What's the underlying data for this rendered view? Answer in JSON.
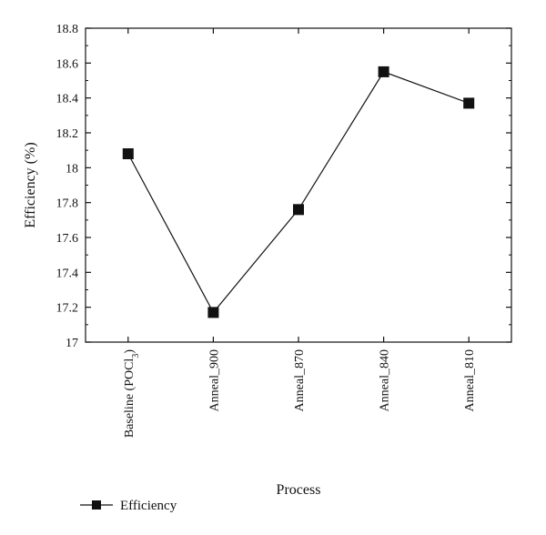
{
  "chart_data": {
    "type": "line",
    "xlabel": "Process",
    "ylabel": "Efficiency (%)",
    "categories": [
      "Baseline (POCl3)",
      "Anneal_900",
      "Anneal_870",
      "Anneal_840",
      "Anneal_810"
    ],
    "category_labels": [
      {
        "main": "Baseline (POCl",
        "sub": "3",
        "after": ")"
      },
      {
        "main": "Anneal_900",
        "sub": "",
        "after": ""
      },
      {
        "main": "Anneal_870",
        "sub": "",
        "after": ""
      },
      {
        "main": "Anneal_840",
        "sub": "",
        "after": ""
      },
      {
        "main": "Anneal_810",
        "sub": "",
        "after": ""
      }
    ],
    "series": [
      {
        "name": "Efficiency",
        "values": [
          18.08,
          17.17,
          17.76,
          18.55,
          18.37
        ]
      }
    ],
    "ylim": [
      17,
      18.8
    ],
    "yticks": [
      "17",
      "17.2",
      "17.4",
      "17.6",
      "17.8",
      "18",
      "18.2",
      "18.4",
      "18.6",
      "18.8"
    ],
    "grid": false,
    "legend_position": "bottom-left",
    "colors": {
      "series": "#111111",
      "axis": "#111111"
    }
  }
}
